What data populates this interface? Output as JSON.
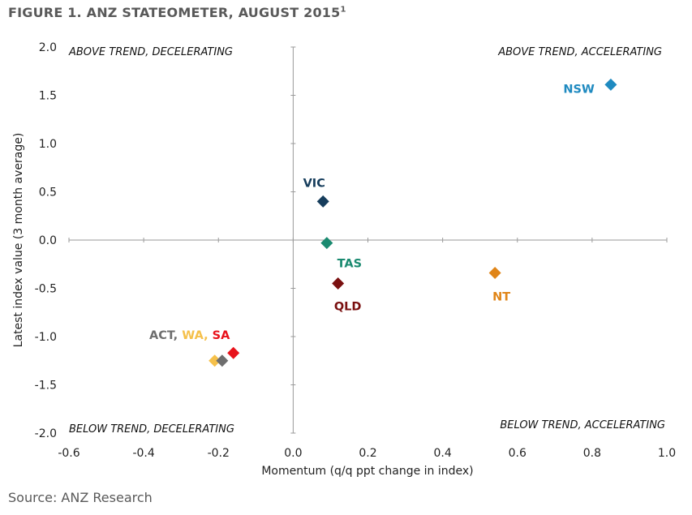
{
  "figure": {
    "title": "FIGURE 1. ANZ STATEOMETER, AUGUST 2015",
    "title_superscript": "1",
    "source": "Source: ANZ Research"
  },
  "chart_data": {
    "type": "scatter",
    "title": "FIGURE 1. ANZ STATEOMETER, AUGUST 2015",
    "xlabel": "Momentum (q/q ppt change in index)",
    "ylabel": "Latest index value (3 month average)",
    "xlim": [
      -0.6,
      1.0
    ],
    "ylim": [
      -2.0,
      2.0
    ],
    "x_ticks": [
      "-0.6",
      "-0.4",
      "-0.2",
      "0.0",
      "0.2",
      "0.4",
      "0.6",
      "0.8",
      "1.0"
    ],
    "y_ticks": [
      "2.0",
      "1.5",
      "1.0",
      "0.5",
      "0.0",
      "-0.5",
      "-1.0",
      "-1.5",
      "-2.0"
    ],
    "grid": false,
    "quadrant_labels": {
      "top_left": "ABOVE TREND, DECELERATING",
      "top_right": "ABOVE TREND, ACCELERATING",
      "bottom_left": "BELOW TREND, DECELERATING",
      "bottom_right": "BELOW TREND, ACCELERATING"
    },
    "points": [
      {
        "label": "NSW",
        "x": 0.85,
        "y": 1.61,
        "color": "#1f8ac0"
      },
      {
        "label": "VIC",
        "x": 0.08,
        "y": 0.4,
        "color": "#163d5c"
      },
      {
        "label": "TAS",
        "x": 0.09,
        "y": -0.03,
        "color": "#1a8a70"
      },
      {
        "label": "QLD",
        "x": 0.12,
        "y": -0.45,
        "color": "#7a1010"
      },
      {
        "label": "NT",
        "x": 0.54,
        "y": -0.34,
        "color": "#e08518"
      },
      {
        "label": "WA",
        "x": -0.21,
        "y": -1.25,
        "color": "#f5c04a"
      },
      {
        "label": "ACT",
        "x": -0.19,
        "y": -1.25,
        "color": "#6e6e6e"
      },
      {
        "label": "SA",
        "x": -0.16,
        "y": -1.17,
        "color": "#e8121b"
      }
    ],
    "combined_label": [
      {
        "text": "ACT, ",
        "color": "#6e6e6e"
      },
      {
        "text": "WA, ",
        "color": "#f5c04a"
      },
      {
        "text": "SA",
        "color": "#e8121b"
      }
    ]
  }
}
